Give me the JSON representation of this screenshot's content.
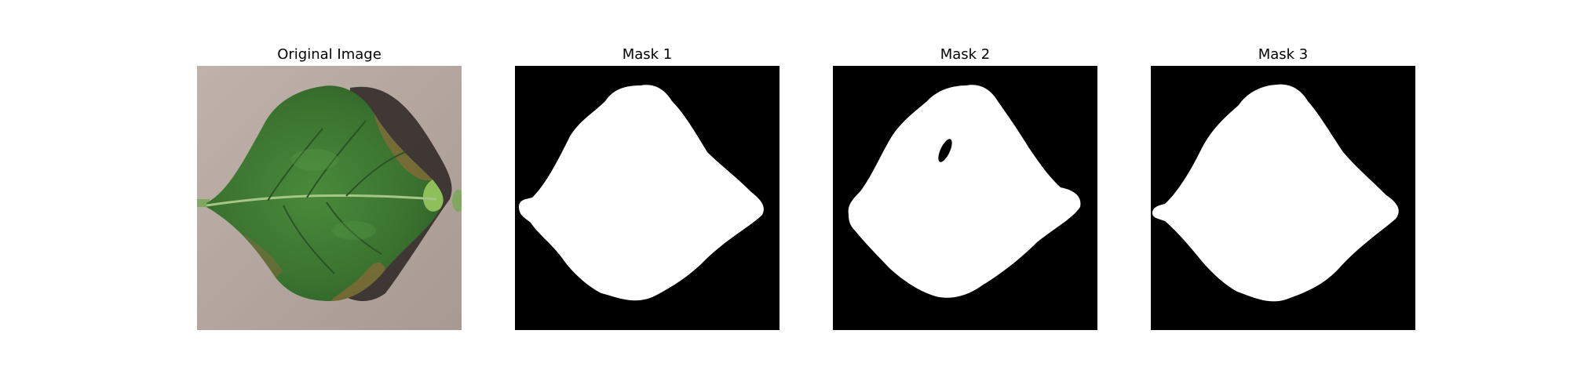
{
  "figure": {
    "panels": [
      {
        "title": "Original Image"
      },
      {
        "title": "Mask 1"
      },
      {
        "title": "Mask 2"
      },
      {
        "title": "Mask 3"
      }
    ]
  },
  "colors": {
    "background": "#ffffff",
    "mask_background": "#000000",
    "mask_foreground": "#ffffff",
    "leaf_green": "#3f7a34",
    "leaf_dark_green": "#2d5e26",
    "leaf_midrib": "#9dbd7a",
    "leaf_blight": "#8a6a3a",
    "paper_background": "#b7aaa2"
  }
}
